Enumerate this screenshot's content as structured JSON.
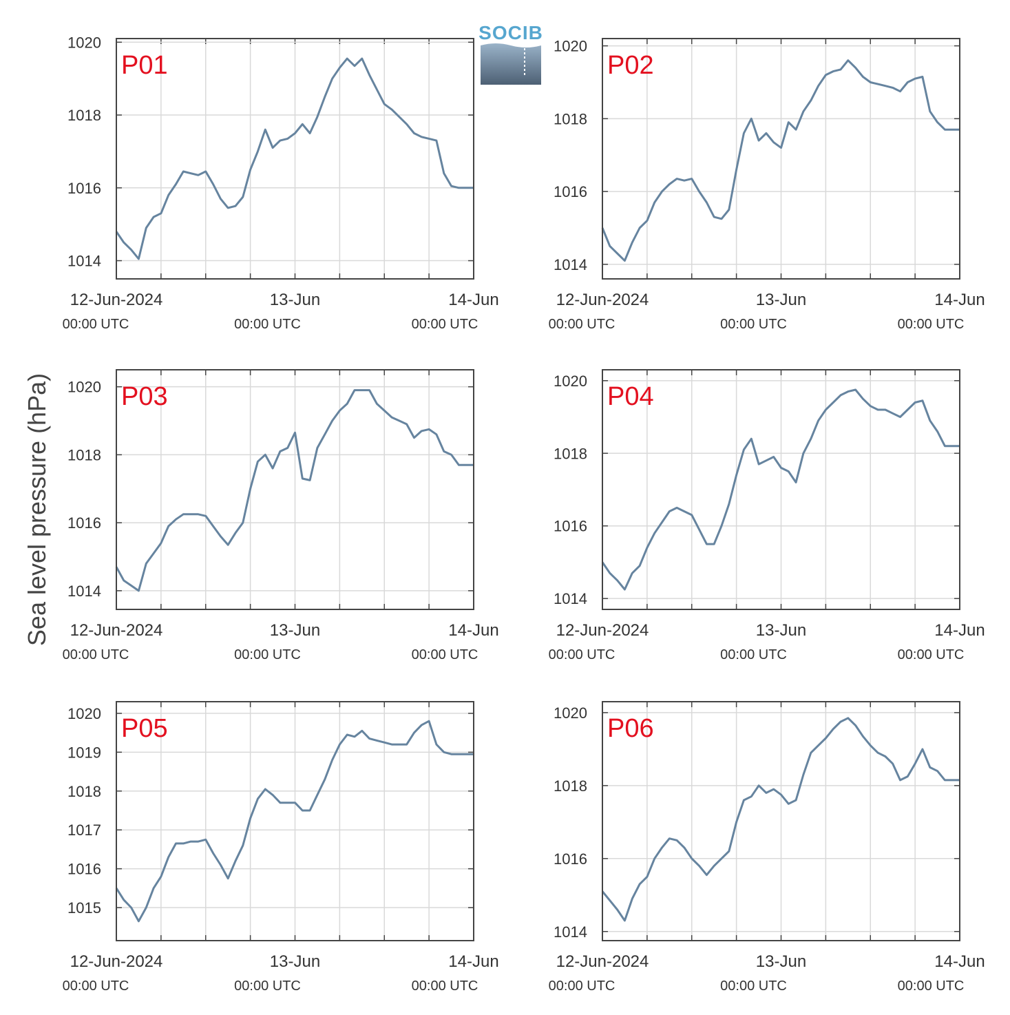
{
  "logo": {
    "text": "SOCIB"
  },
  "colors": {
    "line": "#66849f",
    "label": "#e3101f",
    "grid": "#d9d9d9",
    "axis": "#444444"
  },
  "chart_data": {
    "type": "line",
    "ylabel": "Sea level pressure (hPa)",
    "xlim": [
      "2024-06-12 00:00",
      "2024-06-14 00:00"
    ],
    "x_ticks": [
      {
        "date": "12-Jun-2024",
        "time": "00:00 UTC"
      },
      {
        "date": "13-Jun",
        "time": "00:00 UTC"
      },
      {
        "date": "14-Jun",
        "time": "00:00 UTC"
      }
    ],
    "grid": true,
    "panels": [
      {
        "label": "P01",
        "ylim": [
          1013.5,
          1020.1
        ],
        "yticks": [
          1014,
          1016,
          1018,
          1020
        ],
        "x_hours": [
          0,
          1,
          2,
          3,
          4,
          5,
          6,
          7,
          8,
          9,
          10,
          11,
          12,
          13,
          14,
          15,
          16,
          17,
          18,
          19,
          20,
          21,
          22,
          23,
          24,
          25,
          26,
          27,
          28,
          29,
          30,
          31,
          32,
          33,
          34,
          35,
          36,
          37,
          38,
          39,
          40,
          41,
          42,
          43,
          44,
          45,
          46,
          47,
          48
        ],
        "values": [
          1014.8,
          1014.5,
          1014.3,
          1014.05,
          1014.9,
          1015.2,
          1015.3,
          1015.8,
          1016.1,
          1016.45,
          1016.4,
          1016.35,
          1016.45,
          1016.1,
          1015.7,
          1015.45,
          1015.5,
          1015.75,
          1016.5,
          1017.0,
          1017.6,
          1017.1,
          1017.3,
          1017.35,
          1017.5,
          1017.75,
          1017.5,
          1017.95,
          1018.5,
          1019.0,
          1019.3,
          1019.55,
          1019.35,
          1019.55,
          1019.1,
          1018.7,
          1018.3,
          1018.15,
          1017.95,
          1017.75,
          1017.5,
          1017.4,
          1017.35,
          1017.3,
          1016.4,
          1016.05,
          1016.0,
          1016.0,
          1016.0
        ]
      },
      {
        "label": "P02",
        "ylim": [
          1013.6,
          1020.2
        ],
        "yticks": [
          1014,
          1016,
          1018,
          1020
        ],
        "x_hours": [
          0,
          1,
          2,
          3,
          4,
          5,
          6,
          7,
          8,
          9,
          10,
          11,
          12,
          13,
          14,
          15,
          16,
          17,
          18,
          19,
          20,
          21,
          22,
          23,
          24,
          25,
          26,
          27,
          28,
          29,
          30,
          31,
          32,
          33,
          34,
          35,
          36,
          37,
          38,
          39,
          40,
          41,
          42,
          43,
          44,
          45,
          46,
          47,
          48
        ],
        "values": [
          1015.0,
          1014.5,
          1014.3,
          1014.1,
          1014.6,
          1015.0,
          1015.2,
          1015.7,
          1016.0,
          1016.2,
          1016.35,
          1016.3,
          1016.35,
          1016.0,
          1015.7,
          1015.3,
          1015.25,
          1015.5,
          1016.6,
          1017.6,
          1018.0,
          1017.4,
          1017.6,
          1017.35,
          1017.2,
          1017.9,
          1017.7,
          1018.2,
          1018.5,
          1018.9,
          1019.2,
          1019.3,
          1019.35,
          1019.6,
          1019.4,
          1019.15,
          1019.0,
          1018.95,
          1018.9,
          1018.85,
          1018.75,
          1019.0,
          1019.1,
          1019.15,
          1018.2,
          1017.9,
          1017.7,
          1017.7,
          1017.7
        ]
      },
      {
        "label": "P03",
        "ylim": [
          1013.45,
          1020.5
        ],
        "yticks": [
          1014,
          1016,
          1018,
          1020
        ],
        "x_hours": [
          0,
          1,
          2,
          3,
          4,
          5,
          6,
          7,
          8,
          9,
          10,
          11,
          12,
          13,
          14,
          15,
          16,
          17,
          18,
          19,
          20,
          21,
          22,
          23,
          24,
          25,
          26,
          27,
          28,
          29,
          30,
          31,
          32,
          33,
          34,
          35,
          36,
          37,
          38,
          39,
          40,
          41,
          42,
          43,
          44,
          45,
          46,
          47,
          48
        ],
        "values": [
          1014.7,
          1014.3,
          1014.15,
          1014.0,
          1014.8,
          1015.1,
          1015.4,
          1015.9,
          1016.1,
          1016.25,
          1016.25,
          1016.25,
          1016.2,
          1015.9,
          1015.6,
          1015.35,
          1015.7,
          1016.0,
          1017.0,
          1017.8,
          1018.0,
          1017.6,
          1018.1,
          1018.2,
          1018.65,
          1017.3,
          1017.25,
          1018.2,
          1018.6,
          1019.0,
          1019.3,
          1019.5,
          1019.9,
          1019.9,
          1019.9,
          1019.5,
          1019.3,
          1019.1,
          1019.0,
          1018.9,
          1018.5,
          1018.7,
          1018.75,
          1018.6,
          1018.1,
          1018.0,
          1017.7,
          1017.7,
          1017.7
        ]
      },
      {
        "label": "P04",
        "ylim": [
          1013.7,
          1020.3
        ],
        "yticks": [
          1014,
          1016,
          1018,
          1020
        ],
        "x_hours": [
          0,
          1,
          2,
          3,
          4,
          5,
          6,
          7,
          8,
          9,
          10,
          11,
          12,
          13,
          14,
          15,
          16,
          17,
          18,
          19,
          20,
          21,
          22,
          23,
          24,
          25,
          26,
          27,
          28,
          29,
          30,
          31,
          32,
          33,
          34,
          35,
          36,
          37,
          38,
          39,
          40,
          41,
          42,
          43,
          44,
          45,
          46,
          47,
          48
        ],
        "values": [
          1015.0,
          1014.7,
          1014.5,
          1014.25,
          1014.7,
          1014.9,
          1015.4,
          1015.8,
          1016.1,
          1016.4,
          1016.5,
          1016.4,
          1016.3,
          1015.9,
          1015.5,
          1015.5,
          1016.0,
          1016.6,
          1017.4,
          1018.1,
          1018.4,
          1017.7,
          1017.8,
          1017.9,
          1017.6,
          1017.5,
          1017.2,
          1018.0,
          1018.4,
          1018.9,
          1019.2,
          1019.4,
          1019.6,
          1019.7,
          1019.75,
          1019.5,
          1019.3,
          1019.2,
          1019.2,
          1019.1,
          1019.0,
          1019.2,
          1019.4,
          1019.45,
          1018.9,
          1018.6,
          1018.2,
          1018.2,
          1018.2
        ]
      },
      {
        "label": "P05",
        "ylim": [
          1014.15,
          1020.3
        ],
        "yticks": [
          1015,
          1016,
          1017,
          1018,
          1019,
          1020
        ],
        "x_hours": [
          0,
          1,
          2,
          3,
          4,
          5,
          6,
          7,
          8,
          9,
          10,
          11,
          12,
          13,
          14,
          15,
          16,
          17,
          18,
          19,
          20,
          21,
          22,
          23,
          24,
          25,
          26,
          27,
          28,
          29,
          30,
          31,
          32,
          33,
          34,
          35,
          36,
          37,
          38,
          39,
          40,
          41,
          42,
          43,
          44,
          45,
          46,
          47,
          48
        ],
        "values": [
          1015.5,
          1015.2,
          1015.0,
          1014.65,
          1015.0,
          1015.5,
          1015.8,
          1016.3,
          1016.65,
          1016.65,
          1016.7,
          1016.7,
          1016.75,
          1016.4,
          1016.1,
          1015.75,
          1016.2,
          1016.6,
          1017.3,
          1017.8,
          1018.05,
          1017.9,
          1017.7,
          1017.7,
          1017.7,
          1017.5,
          1017.5,
          1017.9,
          1018.3,
          1018.8,
          1019.2,
          1019.45,
          1019.4,
          1019.55,
          1019.35,
          1019.3,
          1019.25,
          1019.2,
          1019.2,
          1019.2,
          1019.5,
          1019.7,
          1019.8,
          1019.2,
          1019.0,
          1018.95,
          1018.95,
          1018.95,
          1018.95
        ]
      },
      {
        "label": "P06",
        "ylim": [
          1013.75,
          1020.3
        ],
        "yticks": [
          1014,
          1016,
          1018,
          1020
        ],
        "x_hours": [
          0,
          1,
          2,
          3,
          4,
          5,
          6,
          7,
          8,
          9,
          10,
          11,
          12,
          13,
          14,
          15,
          16,
          17,
          18,
          19,
          20,
          21,
          22,
          23,
          24,
          25,
          26,
          27,
          28,
          29,
          30,
          31,
          32,
          33,
          34,
          35,
          36,
          37,
          38,
          39,
          40,
          41,
          42,
          43,
          44,
          45,
          46,
          47,
          48
        ],
        "values": [
          1015.1,
          1014.85,
          1014.6,
          1014.3,
          1014.9,
          1015.3,
          1015.5,
          1016.0,
          1016.3,
          1016.55,
          1016.5,
          1016.3,
          1016.0,
          1015.8,
          1015.55,
          1015.8,
          1016.0,
          1016.2,
          1017.0,
          1017.6,
          1017.7,
          1018.0,
          1017.8,
          1017.9,
          1017.75,
          1017.5,
          1017.6,
          1018.3,
          1018.9,
          1019.1,
          1019.3,
          1019.55,
          1019.75,
          1019.85,
          1019.65,
          1019.35,
          1019.1,
          1018.9,
          1018.8,
          1018.6,
          1018.15,
          1018.25,
          1018.6,
          1019.0,
          1018.5,
          1018.4,
          1018.15,
          1018.15,
          1018.15
        ]
      }
    ]
  }
}
